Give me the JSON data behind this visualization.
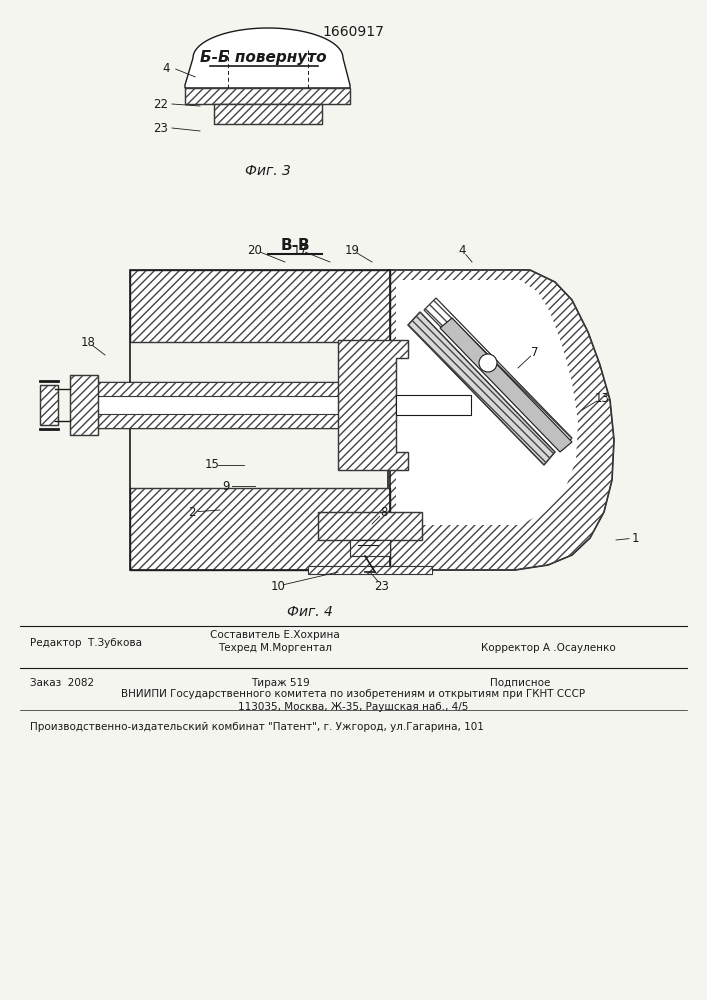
{
  "patent_number": "1660917",
  "title_fig3": "Б-Б повернуто",
  "caption_fig3": "Фиг. 3",
  "title_fig4": "В-В",
  "caption_fig4": "Фиг. 4",
  "footer_editor": "Редактор  Т.Зубкова",
  "footer_comp": "Составитель Е.Хохрина",
  "footer_tech": "Техред М.Моргентал",
  "footer_corr": "Корректор А .Осауленко",
  "footer_order": "Заказ  2082",
  "footer_print": "Тираж 519",
  "footer_sub": "Подписное",
  "footer_vniip": "ВНИИПИ Государственного комитета по изобретениям и открытиям при ГКНТ СССР",
  "footer_addr": "113035, Москва, Ж-35, Раушская наб., 4/5",
  "footer_plant": "Производственно-издательский комбинат \"Патент\", г. Ужгород, ул.Гагарина, 101",
  "bg_color": "#f5f5f0",
  "lc": "#1a1a1a",
  "tc": "#1a1a1a",
  "hc": "#444444"
}
